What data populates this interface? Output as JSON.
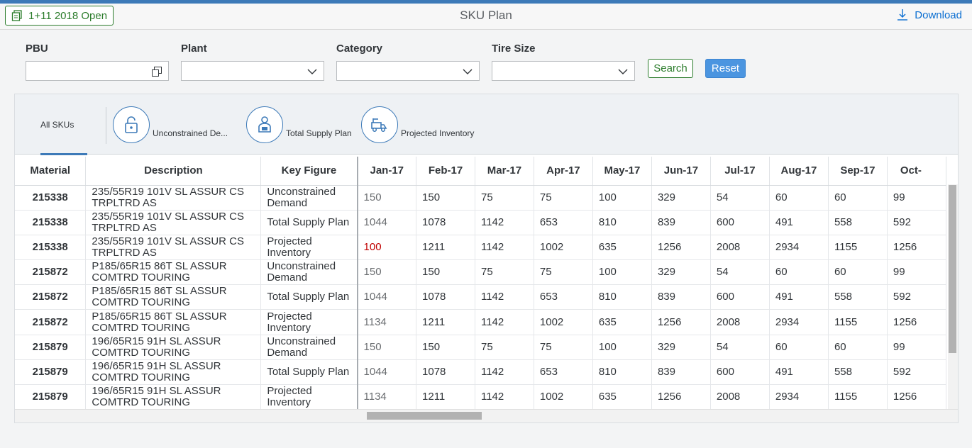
{
  "header": {
    "version_label": "1+11 2018 Open",
    "title": "SKU Plan",
    "download_label": "Download"
  },
  "filters": {
    "pbu": {
      "label": "PBU",
      "value": ""
    },
    "plant": {
      "label": "Plant",
      "value": ""
    },
    "category": {
      "label": "Category",
      "value": ""
    },
    "tire_size": {
      "label": "Tire Size",
      "value": ""
    }
  },
  "actions": {
    "search_label": "Search",
    "reset_label": "Reset"
  },
  "tabs": {
    "all": "All SKUs",
    "unconstrained": "Unconstrained De...",
    "supply": "Total Supply Plan",
    "inventory": "Projected Inventory"
  },
  "table": {
    "headers": [
      "Material",
      "Description",
      "Key Figure",
      "Jan-17",
      "Feb-17",
      "Mar-17",
      "Apr-17",
      "May-17",
      "Jun-17",
      "Jul-17",
      "Aug-17",
      "Sep-17",
      "Oct-"
    ],
    "rows": [
      {
        "material": "215338",
        "description": "235/55R19 101V SL ASSUR CS TRPLTRD AS",
        "key_figure": "Unconstrained Demand",
        "values": [
          "150",
          "150",
          "75",
          "75",
          "100",
          "329",
          "54",
          "60",
          "60",
          "99"
        ]
      },
      {
        "material": "215338",
        "description": "235/55R19 101V SL ASSUR CS TRPLTRD AS",
        "key_figure": "Total Supply Plan",
        "values": [
          "1044",
          "1078",
          "1142",
          "653",
          "810",
          "839",
          "600",
          "491",
          "558",
          "592"
        ]
      },
      {
        "material": "215338",
        "description": "235/55R19 101V SL ASSUR CS TRPLTRD AS",
        "key_figure": "Projected Inventory",
        "values": [
          "100",
          "1211",
          "1142",
          "1002",
          "635",
          "1256",
          "2008",
          "2934",
          "1155",
          "1256"
        ],
        "alert": true
      },
      {
        "material": "215872",
        "description": "P185/65R15 86T SL ASSUR COMTRD TOURING",
        "key_figure": "Unconstrained Demand",
        "values": [
          "150",
          "150",
          "75",
          "75",
          "100",
          "329",
          "54",
          "60",
          "60",
          "99"
        ]
      },
      {
        "material": "215872",
        "description": "P185/65R15 86T SL ASSUR COMTRD TOURING",
        "key_figure": "Total Supply Plan",
        "values": [
          "1044",
          "1078",
          "1142",
          "653",
          "810",
          "839",
          "600",
          "491",
          "558",
          "592"
        ]
      },
      {
        "material": "215872",
        "description": "P185/65R15 86T SL ASSUR COMTRD TOURING",
        "key_figure": "Projected Inventory",
        "values": [
          "1134",
          "1211",
          "1142",
          "1002",
          "635",
          "1256",
          "2008",
          "2934",
          "1155",
          "1256"
        ]
      },
      {
        "material": "215879",
        "description": "196/65R15 91H SL ASSUR COMTRD TOURING",
        "key_figure": "Unconstrained Demand",
        "values": [
          "150",
          "150",
          "75",
          "75",
          "100",
          "329",
          "54",
          "60",
          "60",
          "99"
        ]
      },
      {
        "material": "215879",
        "description": "196/65R15 91H SL ASSUR COMTRD TOURING",
        "key_figure": "Total Supply Plan",
        "values": [
          "1044",
          "1078",
          "1142",
          "653",
          "810",
          "839",
          "600",
          "491",
          "558",
          "592"
        ]
      },
      {
        "material": "215879",
        "description": "196/65R15 91H SL ASSUR COMTRD TOURING",
        "key_figure": "Projected Inventory",
        "values": [
          "1134",
          "1211",
          "1142",
          "1002",
          "635",
          "1256",
          "2008",
          "2934",
          "1155",
          "1256"
        ]
      }
    ]
  },
  "colors": {
    "accent": "#3d7ab8",
    "positive": "#2b7c2b",
    "alert": "#c00000"
  },
  "icons": {
    "version": "copy-icon",
    "download": "download-icon",
    "unconstrained": "unlock-icon",
    "supply": "worker-icon",
    "inventory": "forklift-icon"
  }
}
